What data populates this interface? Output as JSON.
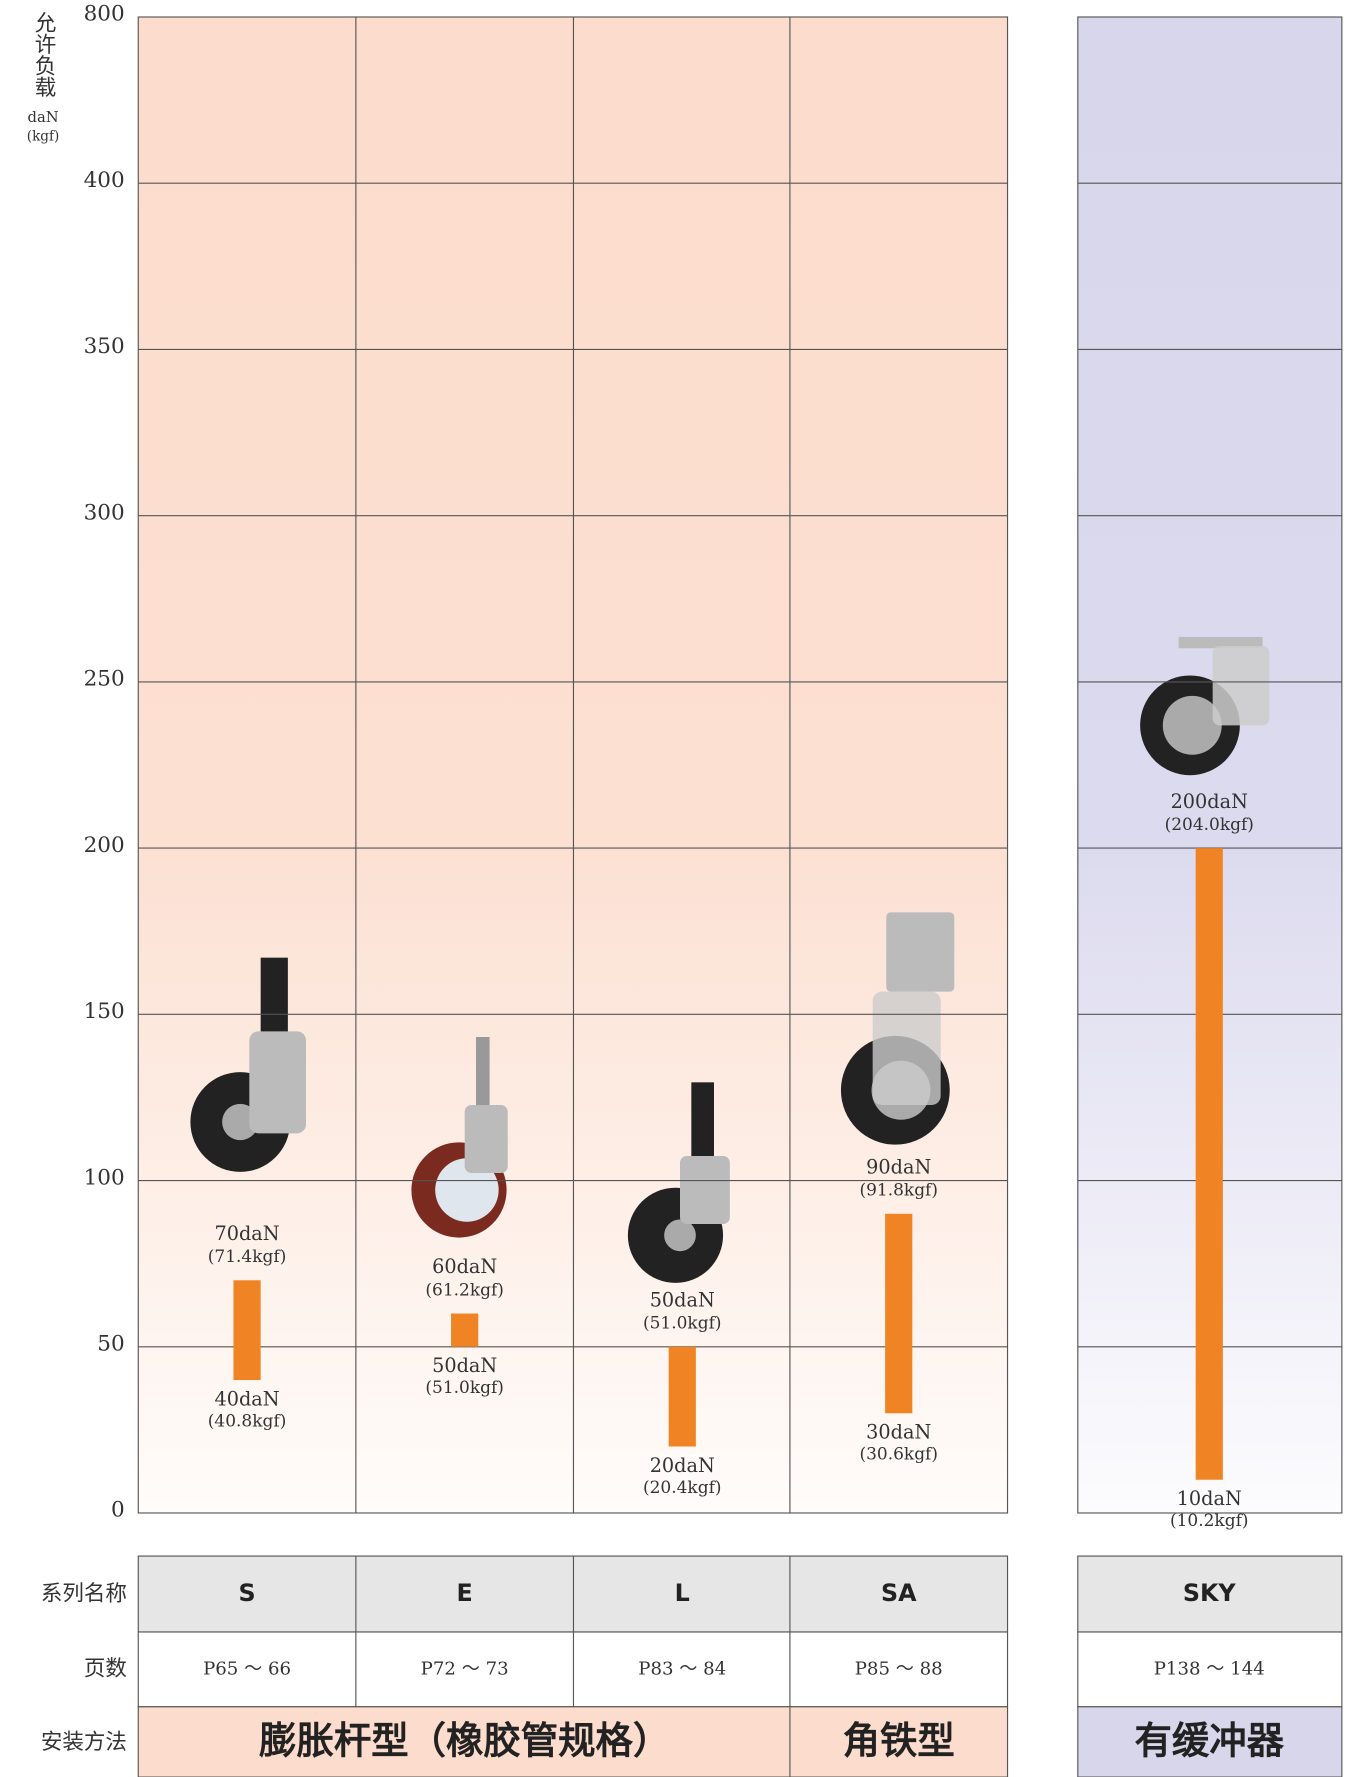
{
  "chart_data": {
    "type": "range-bar",
    "y_label": "允许负载",
    "y_unit": "daN",
    "y_unit_secondary": "(kgf)",
    "categories": [
      "S",
      "E",
      "L",
      "SA",
      "SKY"
    ],
    "low": [
      40,
      50,
      20,
      30,
      10
    ],
    "high": [
      70,
      60,
      50,
      90,
      200
    ],
    "low_labels": [
      "40daN",
      "50daN",
      "20daN",
      "30daN",
      "10daN"
    ],
    "high_labels": [
      "70daN",
      "60daN",
      "50daN",
      "90daN",
      "200daN"
    ],
    "low_kgf_labels": [
      "(40.8kgf)",
      "(51.0kgf)",
      "(20.4kgf)",
      "(30.6kgf)",
      "(10.2kgf)"
    ],
    "high_kgf_labels": [
      "(71.4kgf)",
      "(61.2kgf)",
      "(51.0kgf)",
      "(91.8kgf)",
      "(204.0kgf)"
    ],
    "color": "#f08424",
    "ylim": [
      0,
      800
    ],
    "yticks": [
      0,
      50,
      100,
      150,
      200,
      250,
      300,
      350,
      400,
      800
    ],
    "grid": true,
    "table": {
      "row_labels": [
        "系列名称",
        "页数",
        "安装方法"
      ],
      "pages": [
        "P65 ～ 66",
        "P72 ～ 73",
        "P83 ～ 84",
        "P85 ～ 88",
        "P138 ～ 144"
      ],
      "methods": [
        "膨胀杆型（橡胶管规格）",
        "角铁型",
        "有缓冲器"
      ]
    }
  }
}
